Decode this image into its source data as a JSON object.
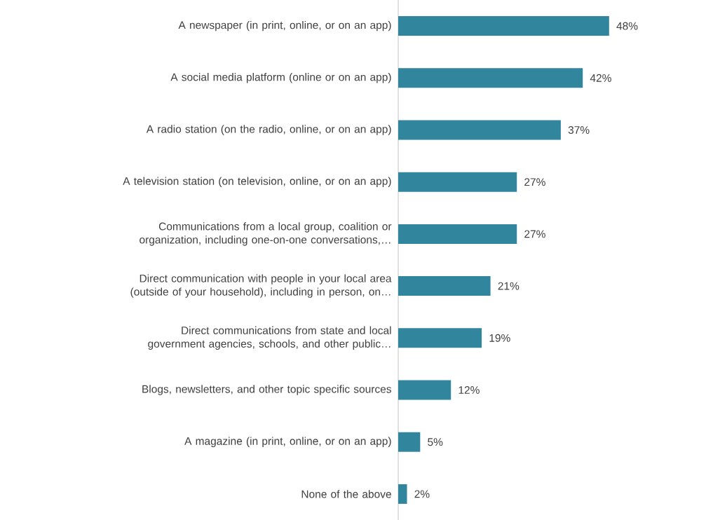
{
  "chart_data": {
    "type": "bar",
    "orientation": "horizontal",
    "categories": [
      "A newspaper (in print, online, or on an app)",
      "A social media platform (online or on an app)",
      "A radio station (on the radio, online, or on an app)",
      "A television station (on television, online, or on an app)",
      "Communications from a local group, coalition or organization, including one-on-one conversations,…",
      "Direct communication with people in your local area (outside of your household), including in person, on…",
      "Direct communications from state and local government agencies, schools, and other public…",
      "Blogs, newsletters, and other topic specific sources",
      "A magazine (in print, online, or on an app)",
      "None of the above"
    ],
    "values": [
      48,
      42,
      37,
      27,
      27,
      21,
      19,
      12,
      5,
      2
    ],
    "value_labels": [
      "48%",
      "42%",
      "37%",
      "27%",
      "27%",
      "21%",
      "19%",
      "12%",
      "5%",
      "2%"
    ],
    "color": "#31859c"
  }
}
